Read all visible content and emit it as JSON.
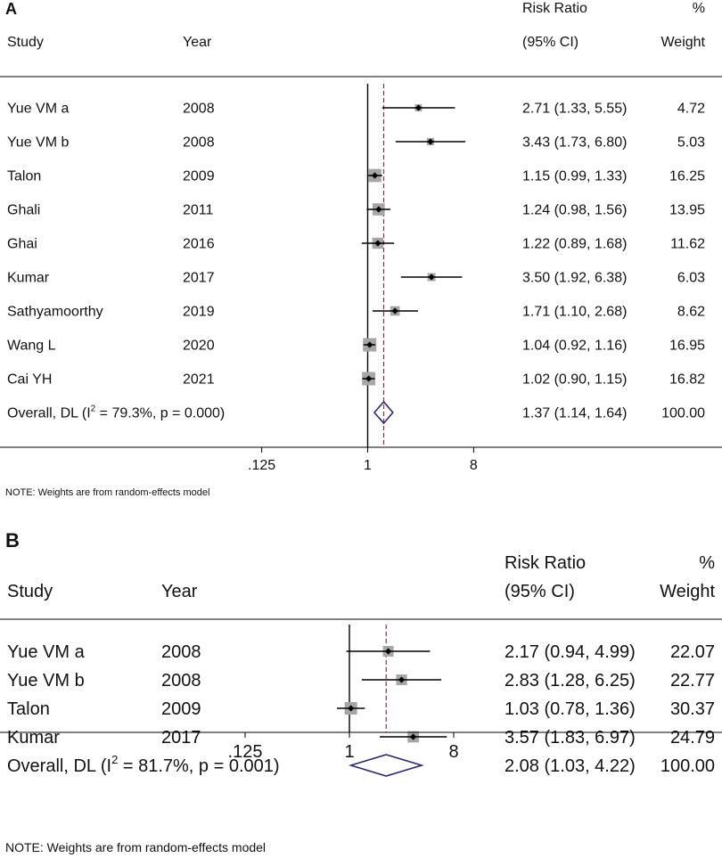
{
  "chart_data": [
    {
      "type": "forest",
      "panel_label": "A",
      "headers": {
        "study": "Study",
        "year": "Year",
        "rr_line1": "Risk Ratio",
        "rr_line2": "(95% CI)",
        "weight_line1": "%",
        "weight_line2": "Weight"
      },
      "scale": "log2",
      "xlim": [
        0.0625,
        16
      ],
      "ticks": [
        {
          "value": 0.125,
          "label": ".125"
        },
        {
          "value": 1,
          "label": "1"
        },
        {
          "value": 8,
          "label": "8"
        }
      ],
      "studies": [
        {
          "name": "Yue VM a",
          "year": "2008",
          "rr": 2.71,
          "lo": 1.33,
          "hi": 5.55,
          "ci_text": "2.71 (1.33, 5.55)",
          "weight": 4.72,
          "weight_text": "4.72"
        },
        {
          "name": "Yue VM b",
          "year": "2008",
          "rr": 3.43,
          "lo": 1.73,
          "hi": 6.8,
          "ci_text": "3.43 (1.73, 6.80)",
          "weight": 5.03,
          "weight_text": "5.03"
        },
        {
          "name": "Talon",
          "year": "2009",
          "rr": 1.15,
          "lo": 0.99,
          "hi": 1.33,
          "ci_text": "1.15 (0.99, 1.33)",
          "weight": 16.25,
          "weight_text": "16.25"
        },
        {
          "name": "Ghali",
          "year": "2011",
          "rr": 1.24,
          "lo": 0.98,
          "hi": 1.56,
          "ci_text": "1.24 (0.98, 1.56)",
          "weight": 13.95,
          "weight_text": "13.95"
        },
        {
          "name": "Ghai",
          "year": "2016",
          "rr": 1.22,
          "lo": 0.89,
          "hi": 1.68,
          "ci_text": "1.22 (0.89, 1.68)",
          "weight": 11.62,
          "weight_text": "11.62"
        },
        {
          "name": "Kumar",
          "year": "2017",
          "rr": 3.5,
          "lo": 1.92,
          "hi": 6.38,
          "ci_text": "3.50 (1.92, 6.38)",
          "weight": 6.03,
          "weight_text": "6.03"
        },
        {
          "name": "Sathyamoorthy",
          "year": "2019",
          "rr": 1.71,
          "lo": 1.1,
          "hi": 2.68,
          "ci_text": "1.71 (1.10, 2.68)",
          "weight": 8.62,
          "weight_text": "8.62"
        },
        {
          "name": "Wang L",
          "year": "2020",
          "rr": 1.04,
          "lo": 0.92,
          "hi": 1.16,
          "ci_text": "1.04 (0.92, 1.16)",
          "weight": 16.95,
          "weight_text": "16.95"
        },
        {
          "name": "Cai YH",
          "year": "2021",
          "rr": 1.02,
          "lo": 0.9,
          "hi": 1.15,
          "ci_text": "1.02 (0.90, 1.15)",
          "weight": 16.82,
          "weight_text": "16.82"
        }
      ],
      "overall": {
        "label_prefix": "Overall, DL (I",
        "label_sup": "2",
        "label_suffix": " = 79.3%, p = 0.000)",
        "rr": 1.37,
        "lo": 1.14,
        "hi": 1.64,
        "ci_text": "1.37 (1.14, 1.64)",
        "weight_text": "100.00"
      },
      "note": "NOTE: Weights are from random-effects model"
    },
    {
      "type": "forest",
      "panel_label": "B",
      "headers": {
        "study": "Study",
        "year": "Year",
        "rr_line1": "Risk Ratio",
        "rr_line2": "(95% CI)",
        "weight_line1": "%",
        "weight_line2": "Weight"
      },
      "scale": "log2",
      "xlim": [
        0.0625,
        16
      ],
      "ticks": [
        {
          "value": 0.125,
          "label": ".125"
        },
        {
          "value": 1,
          "label": "1"
        },
        {
          "value": 8,
          "label": "8"
        }
      ],
      "studies": [
        {
          "name": "Yue VM a",
          "year": "2008",
          "rr": 2.17,
          "lo": 0.94,
          "hi": 4.99,
          "ci_text": "2.17 (0.94, 4.99)",
          "weight": 22.07,
          "weight_text": "22.07"
        },
        {
          "name": "Yue VM b",
          "year": "2008",
          "rr": 2.83,
          "lo": 1.28,
          "hi": 6.25,
          "ci_text": "2.83 (1.28, 6.25)",
          "weight": 22.77,
          "weight_text": "22.77"
        },
        {
          "name": "Talon",
          "year": "2009",
          "rr": 1.03,
          "lo": 0.78,
          "hi": 1.36,
          "ci_text": "1.03 (0.78, 1.36)",
          "weight": 30.37,
          "weight_text": "30.37"
        },
        {
          "name": "Kumar",
          "year": "2017",
          "rr": 3.57,
          "lo": 1.83,
          "hi": 6.97,
          "ci_text": "3.57 (1.83, 6.97)",
          "weight": 24.79,
          "weight_text": "24.79"
        }
      ],
      "overall": {
        "label_prefix": "Overall, DL (I",
        "label_sup": "2",
        "label_suffix": " = 81.7%, p = 0.001)",
        "rr": 2.08,
        "lo": 1.03,
        "hi": 4.22,
        "ci_text": "2.08 (1.03, 4.22)",
        "weight_text": "100.00"
      },
      "note": "NOTE: Weights are from random-effects model"
    }
  ],
  "colors": {
    "text": "#111111",
    "ci_line": "#000000",
    "weight_box": "#a6a6a6",
    "overall_diamond": "#2b2a6e",
    "overall_line": "#9b2c4b",
    "axis": "#000000"
  }
}
